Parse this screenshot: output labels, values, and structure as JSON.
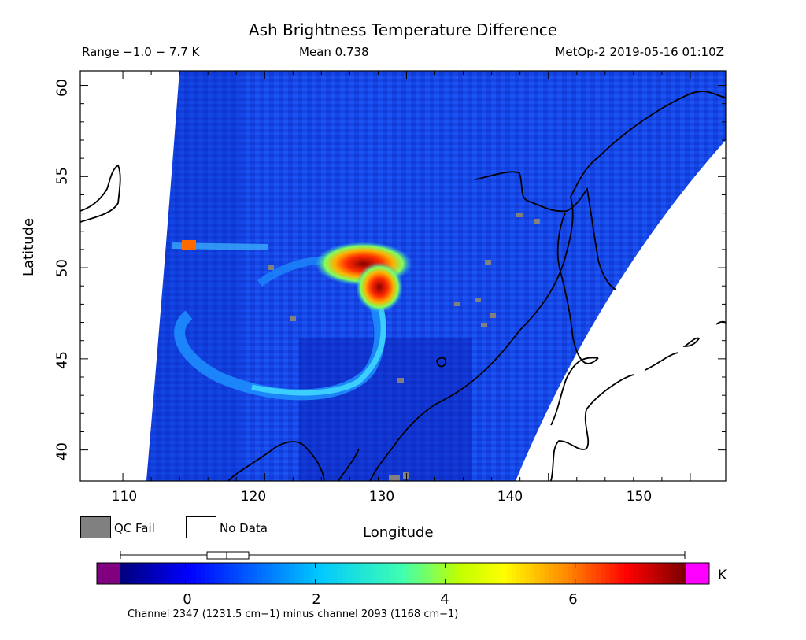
{
  "header": {
    "title": "Ash Brightness Temperature Difference",
    "range": "Range −1.0 − 7.7 K",
    "mean": "Mean 0.738",
    "timestamp": "MetOp-2 2019-05-16 01:10Z"
  },
  "map": {
    "y_axis_label": "Latitude",
    "x_axis_label": "Longitude",
    "lat_ticks": [
      "60",
      "55",
      "50",
      "45",
      "40"
    ],
    "lon_ticks": [
      "110",
      "120",
      "130",
      "140",
      "150"
    ],
    "lat_range": [
      38.3,
      60.8
    ],
    "lon_range": [
      107.0,
      152.5
    ],
    "colors": {
      "qc_fail": "#808080",
      "no_data": "#ffffff",
      "coastline": "#000000"
    }
  },
  "legend": {
    "qc_fail": "QC Fail",
    "no_data": "No Data"
  },
  "colorbar": {
    "ticks": [
      "0",
      "2",
      "4",
      "6"
    ],
    "unit": "K",
    "value_range": [
      -1.0,
      7.7
    ],
    "below_range_color": "#800080",
    "above_range_color": "#ff00ff",
    "boxplot_note": "",
    "caption": "Channel 2347 (1231.5 cm−1) minus channel 2093 (1168 cm−1)"
  }
}
